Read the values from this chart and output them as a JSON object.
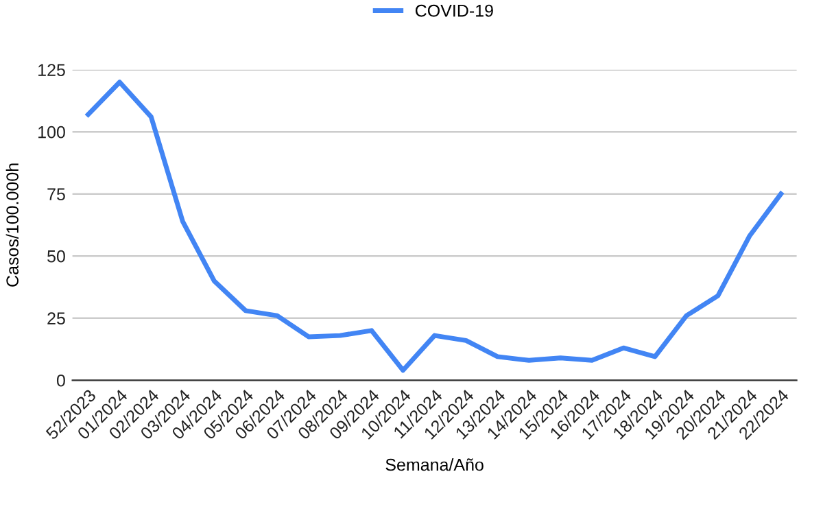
{
  "chart_data": {
    "type": "line",
    "xlabel": "Semana/Año",
    "ylabel": "Casos/100.000h",
    "categories": [
      "52/2023",
      "01/2024",
      "02/2024",
      "03/2024",
      "04/2024",
      "05/2024",
      "06/2024",
      "07/2024",
      "08/2024",
      "09/2024",
      "10/2024",
      "11/2024",
      "12/2024",
      "13/2024",
      "14/2024",
      "15/2024",
      "16/2024",
      "17/2024",
      "18/2024",
      "19/2024",
      "20/2024",
      "21/2024",
      "22/2024"
    ],
    "series": [
      {
        "name": "COVID-19",
        "color": "#4285f4",
        "values": [
          107,
          120,
          106,
          64,
          40,
          28,
          26,
          17.5,
          18,
          20,
          4,
          18,
          16,
          9.5,
          8,
          9,
          8,
          13,
          9.5,
          26,
          34,
          58,
          75
        ]
      }
    ],
    "ylim": [
      0,
      125
    ],
    "yticks": [
      0,
      25,
      50,
      75,
      100,
      125
    ],
    "grid": "y",
    "legend": "top",
    "marker": "none",
    "line_style": "solid"
  }
}
